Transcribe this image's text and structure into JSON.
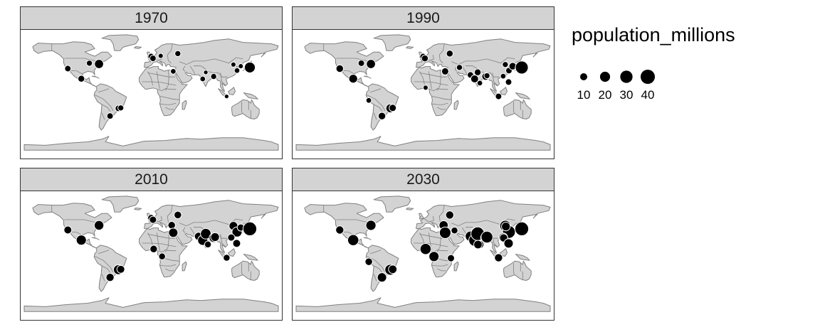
{
  "panels": [
    {
      "label": "1970",
      "cities": [
        {
          "lon": -118.2,
          "lat": 34.1,
          "pop": 8
        },
        {
          "lon": -99.1,
          "lat": 19.4,
          "pop": 9
        },
        {
          "lon": -87.6,
          "lat": 41.9,
          "pop": 7
        },
        {
          "lon": -75.2,
          "lat": 39.9,
          "pop": 5
        },
        {
          "lon": -74.0,
          "lat": 40.7,
          "pop": 16
        },
        {
          "lon": -58.4,
          "lat": -34.6,
          "pop": 8
        },
        {
          "lon": -46.6,
          "lat": -23.5,
          "pop": 8
        },
        {
          "lon": -43.2,
          "lat": -22.9,
          "pop": 7
        },
        {
          "lon": -0.1,
          "lat": 51.5,
          "pop": 8
        },
        {
          "lon": 2.4,
          "lat": 48.9,
          "pop": 8
        },
        {
          "lon": 13.4,
          "lat": 52.5,
          "pop": 5
        },
        {
          "lon": 37.6,
          "lat": 55.8,
          "pop": 7
        },
        {
          "lon": 31.2,
          "lat": 30.0,
          "pop": 6
        },
        {
          "lon": 72.9,
          "lat": 19.1,
          "pop": 6
        },
        {
          "lon": 77.2,
          "lat": 28.6,
          "pop": 4
        },
        {
          "lon": 88.4,
          "lat": 22.6,
          "pop": 7
        },
        {
          "lon": 116.4,
          "lat": 39.9,
          "pop": 5
        },
        {
          "lon": 121.5,
          "lat": 31.2,
          "pop": 6
        },
        {
          "lon": 126.9,
          "lat": 37.6,
          "pop": 5
        },
        {
          "lon": 135.5,
          "lat": 34.7,
          "pop": 9
        },
        {
          "lon": 139.7,
          "lat": 35.7,
          "pop": 23
        },
        {
          "lon": 106.8,
          "lat": -6.2,
          "pop": 4
        }
      ]
    },
    {
      "label": "1990",
      "cities": [
        {
          "lon": -118.2,
          "lat": 34.1,
          "pop": 11
        },
        {
          "lon": -99.1,
          "lat": 19.4,
          "pop": 15
        },
        {
          "lon": -87.6,
          "lat": 41.9,
          "pop": 8
        },
        {
          "lon": -74.0,
          "lat": 40.7,
          "pop": 16
        },
        {
          "lon": -58.4,
          "lat": -34.6,
          "pop": 11
        },
        {
          "lon": -46.6,
          "lat": -23.5,
          "pop": 15
        },
        {
          "lon": -43.2,
          "lat": -22.9,
          "pop": 10
        },
        {
          "lon": -77.0,
          "lat": -12.0,
          "pop": 6
        },
        {
          "lon": -0.1,
          "lat": 51.5,
          "pop": 8
        },
        {
          "lon": 2.4,
          "lat": 48.9,
          "pop": 9
        },
        {
          "lon": 37.6,
          "lat": 55.8,
          "pop": 9
        },
        {
          "lon": 31.2,
          "lat": 30.0,
          "pop": 10
        },
        {
          "lon": 3.4,
          "lat": 6.5,
          "pop": 5
        },
        {
          "lon": 51.4,
          "lat": 35.7,
          "pop": 7
        },
        {
          "lon": 67.0,
          "lat": 24.9,
          "pop": 8
        },
        {
          "lon": 72.9,
          "lat": 19.1,
          "pop": 12
        },
        {
          "lon": 77.2,
          "lat": 28.6,
          "pop": 9
        },
        {
          "lon": 88.4,
          "lat": 22.6,
          "pop": 11
        },
        {
          "lon": 90.4,
          "lat": 23.8,
          "pop": 7
        },
        {
          "lon": 80.3,
          "lat": 13.1,
          "pop": 6
        },
        {
          "lon": 116.4,
          "lat": 39.9,
          "pop": 7
        },
        {
          "lon": 121.5,
          "lat": 31.2,
          "pop": 8
        },
        {
          "lon": 126.9,
          "lat": 37.6,
          "pop": 11
        },
        {
          "lon": 113.3,
          "lat": 23.1,
          "pop": 6
        },
        {
          "lon": 135.5,
          "lat": 34.7,
          "pop": 11
        },
        {
          "lon": 139.7,
          "lat": 35.7,
          "pop": 33
        },
        {
          "lon": 120.98,
          "lat": 14.6,
          "pop": 8
        },
        {
          "lon": 106.8,
          "lat": -6.2,
          "pop": 8
        }
      ]
    },
    {
      "label": "2010",
      "cities": [
        {
          "lon": -118.2,
          "lat": 34.1,
          "pop": 12
        },
        {
          "lon": -99.1,
          "lat": 19.4,
          "pop": 20
        },
        {
          "lon": -74.0,
          "lat": 40.7,
          "pop": 18
        },
        {
          "lon": -58.4,
          "lat": -34.6,
          "pop": 13
        },
        {
          "lon": -46.6,
          "lat": -23.5,
          "pop": 19
        },
        {
          "lon": -43.2,
          "lat": -22.9,
          "pop": 12
        },
        {
          "lon": -0.1,
          "lat": 51.5,
          "pop": 9
        },
        {
          "lon": 2.4,
          "lat": 48.9,
          "pop": 10
        },
        {
          "lon": 37.6,
          "lat": 55.8,
          "pop": 11
        },
        {
          "lon": 28.9,
          "lat": 41.0,
          "pop": 11
        },
        {
          "lon": 31.2,
          "lat": 30.0,
          "pop": 17
        },
        {
          "lon": 3.4,
          "lat": 6.5,
          "pop": 11
        },
        {
          "lon": 15.3,
          "lat": -4.3,
          "pop": 9
        },
        {
          "lon": 67.0,
          "lat": 24.9,
          "pop": 13
        },
        {
          "lon": 72.9,
          "lat": 19.1,
          "pop": 20
        },
        {
          "lon": 77.2,
          "lat": 28.6,
          "pop": 22
        },
        {
          "lon": 88.4,
          "lat": 22.6,
          "pop": 16
        },
        {
          "lon": 90.4,
          "lat": 23.8,
          "pop": 15
        },
        {
          "lon": 80.3,
          "lat": 13.1,
          "pop": 9
        },
        {
          "lon": 116.4,
          "lat": 39.9,
          "pop": 15
        },
        {
          "lon": 121.5,
          "lat": 31.2,
          "pop": 20
        },
        {
          "lon": 126.9,
          "lat": 37.6,
          "pop": 10
        },
        {
          "lon": 113.3,
          "lat": 23.1,
          "pop": 10
        },
        {
          "lon": 135.5,
          "lat": 34.7,
          "pop": 11
        },
        {
          "lon": 139.7,
          "lat": 35.7,
          "pop": 37
        },
        {
          "lon": 120.98,
          "lat": 14.6,
          "pop": 12
        },
        {
          "lon": 106.8,
          "lat": -6.2,
          "pop": 9
        }
      ]
    },
    {
      "label": "2030",
      "cities": [
        {
          "lon": -118.2,
          "lat": 34.1,
          "pop": 13
        },
        {
          "lon": -99.1,
          "lat": 19.4,
          "pop": 24
        },
        {
          "lon": -74.0,
          "lat": 40.7,
          "pop": 20
        },
        {
          "lon": -77.0,
          "lat": -12.0,
          "pop": 11
        },
        {
          "lon": -58.4,
          "lat": -34.6,
          "pop": 17
        },
        {
          "lon": -46.6,
          "lat": -23.5,
          "pop": 23
        },
        {
          "lon": -43.2,
          "lat": -22.9,
          "pop": 14
        },
        {
          "lon": 37.6,
          "lat": 55.8,
          "pop": 13
        },
        {
          "lon": 28.9,
          "lat": 41.0,
          "pop": 16
        },
        {
          "lon": 31.2,
          "lat": 30.0,
          "pop": 26
        },
        {
          "lon": 44.4,
          "lat": 33.3,
          "pop": 9
        },
        {
          "lon": 3.4,
          "lat": 6.5,
          "pop": 24
        },
        {
          "lon": 15.3,
          "lat": -4.3,
          "pop": 20
        },
        {
          "lon": 39.3,
          "lat": -6.8,
          "pop": 10
        },
        {
          "lon": 67.0,
          "lat": 24.9,
          "pop": 21
        },
        {
          "lon": 74.3,
          "lat": 31.5,
          "pop": 15
        },
        {
          "lon": 72.9,
          "lat": 19.1,
          "pop": 27
        },
        {
          "lon": 77.2,
          "lat": 28.6,
          "pop": 36
        },
        {
          "lon": 88.4,
          "lat": 22.6,
          "pop": 20
        },
        {
          "lon": 90.4,
          "lat": 23.8,
          "pop": 27
        },
        {
          "lon": 80.3,
          "lat": 13.1,
          "pop": 13
        },
        {
          "lon": 77.6,
          "lat": 12.97,
          "pop": 14
        },
        {
          "lon": 116.4,
          "lat": 39.9,
          "pop": 24
        },
        {
          "lon": 121.5,
          "lat": 31.2,
          "pop": 32
        },
        {
          "lon": 117.2,
          "lat": 39.1,
          "pop": 15
        },
        {
          "lon": 113.3,
          "lat": 23.1,
          "pop": 16
        },
        {
          "lon": 114.1,
          "lat": 22.5,
          "pop": 13
        },
        {
          "lon": 135.5,
          "lat": 34.7,
          "pop": 11
        },
        {
          "lon": 139.7,
          "lat": 35.7,
          "pop": 37
        },
        {
          "lon": 120.98,
          "lat": 14.6,
          "pop": 17
        },
        {
          "lon": 106.8,
          "lat": -6.2,
          "pop": 13
        }
      ]
    }
  ],
  "legend": {
    "title": "population_millions",
    "keys": [
      {
        "value": 10,
        "label": "10"
      },
      {
        "value": 20,
        "label": "20"
      },
      {
        "value": 30,
        "label": "30"
      },
      {
        "value": 40,
        "label": "40"
      }
    ]
  },
  "colors": {
    "land": "#d3d3d3",
    "border": "#808080",
    "point": "#000000",
    "point_outline": "#ffffff",
    "strip": "#d3d3d3"
  }
}
